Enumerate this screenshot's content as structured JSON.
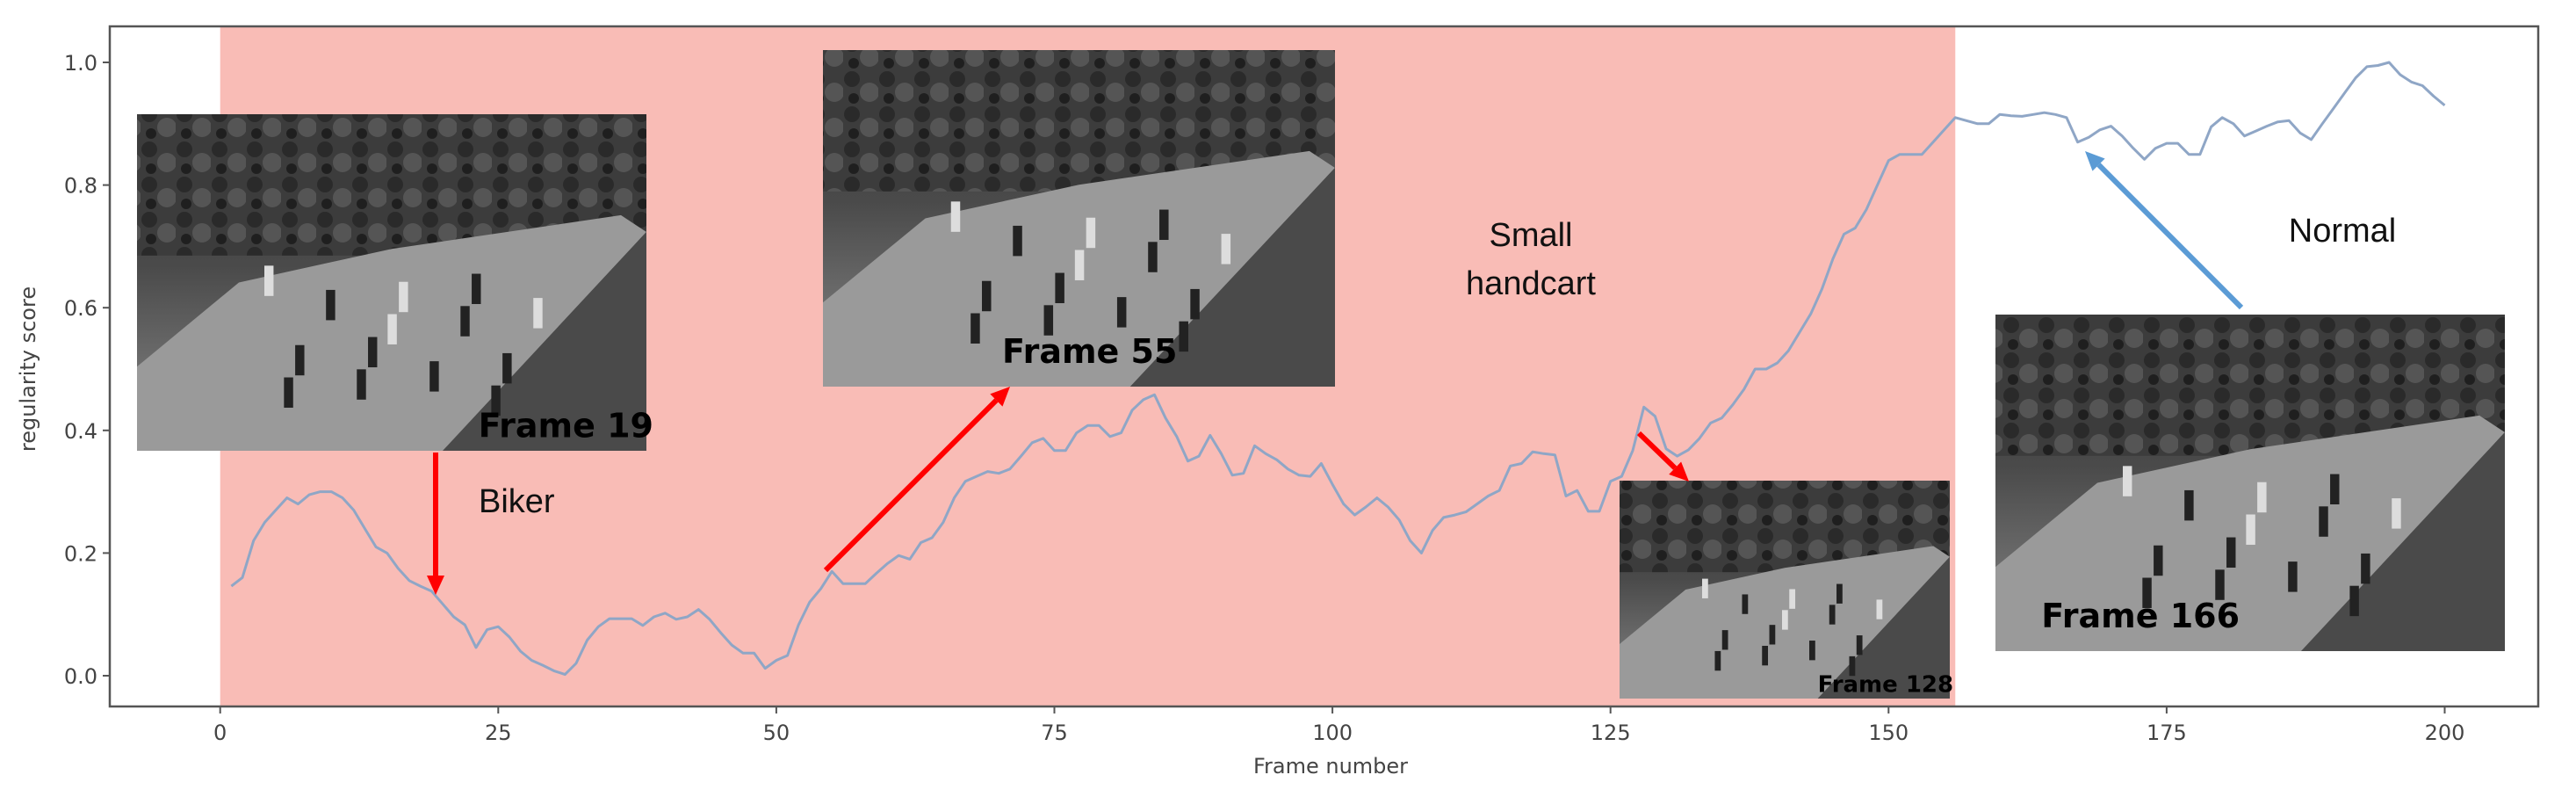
{
  "chart_data": {
    "type": "line",
    "title": "",
    "xlabel": "Frame number",
    "ylabel": "regularity score",
    "xlim": [
      -10,
      210
    ],
    "ylim": [
      -0.05,
      1.05
    ],
    "xticks": [
      "0",
      "25",
      "50",
      "75",
      "100",
      "125",
      "150",
      "175",
      "200"
    ],
    "yticks": [
      "0.0",
      "0.2",
      "0.4",
      "0.6",
      "0.8",
      "1.0"
    ],
    "grid": false,
    "anomaly_span": {
      "from": 0,
      "to": 156,
      "color": "#f9bcb6"
    },
    "line_color": "#8fa6c6",
    "x_start": 1,
    "values": [
      0.146,
      0.16,
      0.22,
      0.25,
      0.27,
      0.29,
      0.28,
      0.295,
      0.3,
      0.3,
      0.29,
      0.27,
      0.24,
      0.21,
      0.2,
      0.175,
      0.155,
      0.146,
      0.138,
      0.117,
      0.096,
      0.083,
      0.046,
      0.075,
      0.08,
      0.063,
      0.04,
      0.025,
      0.017,
      0.008,
      0.002,
      0.02,
      0.058,
      0.08,
      0.093,
      0.093,
      0.093,
      0.082,
      0.096,
      0.102,
      0.092,
      0.096,
      0.108,
      0.092,
      0.07,
      0.05,
      0.037,
      0.037,
      0.012,
      0.025,
      0.033,
      0.083,
      0.12,
      0.142,
      0.17,
      0.15,
      0.15,
      0.15,
      0.167,
      0.183,
      0.196,
      0.19,
      0.217,
      0.225,
      0.25,
      0.29,
      0.317,
      0.325,
      0.333,
      0.33,
      0.337,
      0.358,
      0.38,
      0.387,
      0.367,
      0.367,
      0.396,
      0.408,
      0.408,
      0.39,
      0.396,
      0.433,
      0.45,
      0.458,
      0.42,
      0.39,
      0.35,
      0.358,
      0.392,
      0.362,
      0.327,
      0.33,
      0.375,
      0.362,
      0.352,
      0.337,
      0.327,
      0.325,
      0.346,
      0.312,
      0.28,
      0.262,
      0.275,
      0.29,
      0.275,
      0.254,
      0.22,
      0.2,
      0.237,
      0.258,
      0.262,
      0.267,
      0.28,
      0.293,
      0.302,
      0.342,
      0.346,
      0.365,
      0.362,
      0.36,
      0.293,
      0.302,
      0.268,
      0.268,
      0.317,
      0.325,
      0.367,
      0.438,
      0.423,
      0.37,
      0.358,
      0.368,
      0.387,
      0.412,
      0.42,
      0.442,
      0.467,
      0.5,
      0.5,
      0.51,
      0.53,
      0.56,
      0.59,
      0.63,
      0.68,
      0.72,
      0.73,
      0.76,
      0.8,
      0.84,
      0.85,
      0.85,
      0.85,
      0.87,
      0.89,
      0.91,
      0.905,
      0.9,
      0.9,
      0.915,
      0.913,
      0.912,
      0.915,
      0.918,
      0.915,
      0.91,
      0.87,
      0.878,
      0.89,
      0.896,
      0.88,
      0.86,
      0.842,
      0.86,
      0.868,
      0.868,
      0.85,
      0.85,
      0.895,
      0.91,
      0.9,
      0.88,
      0.888,
      0.896,
      0.903,
      0.905,
      0.885,
      0.874,
      0.9,
      0.925,
      0.95,
      0.975,
      0.993,
      0.995,
      1.0,
      0.98,
      0.968,
      0.962,
      0.945,
      0.93
    ],
    "annotations": [
      {
        "text": "Biker",
        "arrow_color": "#ff0000"
      },
      {
        "text": "Small handcart",
        "lines": [
          "Small",
          "handcart"
        ],
        "arrow_color": "#ff0000"
      },
      {
        "text": "Normal",
        "arrow_color": "#5b9bd5"
      }
    ],
    "frames": [
      {
        "label": "Frame 19",
        "frame": 19
      },
      {
        "label": "Frame 55",
        "frame": 55
      },
      {
        "label": "Frame 128",
        "frame": 128
      },
      {
        "label": "Frame 166",
        "frame": 166
      }
    ]
  }
}
